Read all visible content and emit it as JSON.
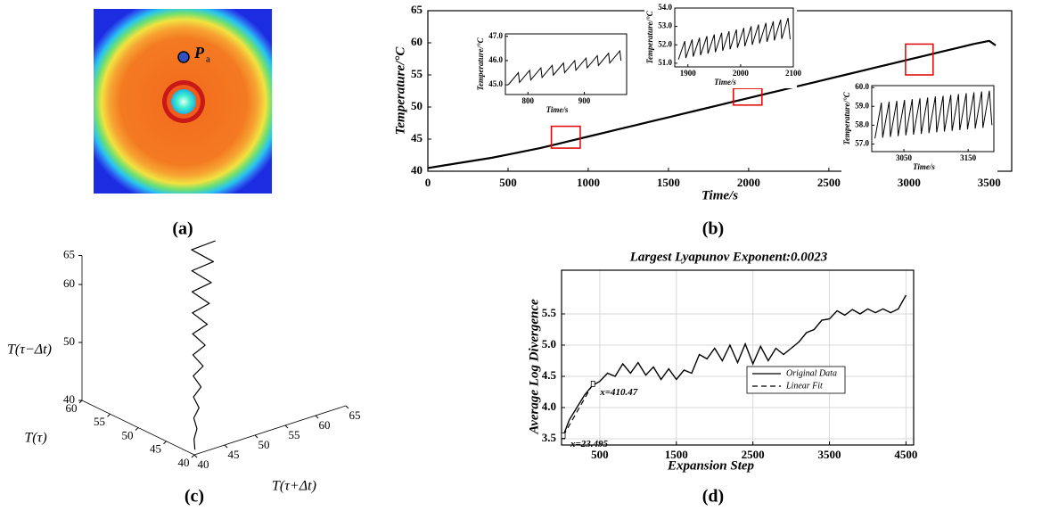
{
  "chart_data": [
    {
      "type": "image",
      "panel_label": "(a)",
      "marker_label": {
        "symbol": "P",
        "subscript": "a"
      }
    },
    {
      "type": "line",
      "panel_label": "(b)",
      "x_label": "Time/s",
      "y_label": "Temperature/°C",
      "color": "#000000",
      "xlim": [
        0,
        3640
      ],
      "ylim": [
        40,
        65
      ],
      "xticks": [
        0,
        500,
        1000,
        1500,
        2000,
        2500,
        3000,
        3500
      ],
      "yticks": [
        40,
        45,
        50,
        55,
        60,
        65
      ],
      "x": [
        0,
        100,
        200,
        300,
        400,
        500,
        600,
        700,
        800,
        900,
        1000,
        1100,
        1200,
        1300,
        1400,
        1500,
        1600,
        1700,
        1800,
        1900,
        2000,
        2100,
        2200,
        2300,
        2400,
        2500,
        2600,
        2700,
        2800,
        2900,
        3000,
        3100,
        3200,
        3300,
        3400,
        3500,
        3540
      ],
      "values": [
        40.5,
        40.9,
        41.3,
        41.7,
        42.1,
        42.6,
        43.1,
        43.6,
        44.2,
        44.8,
        45.4,
        46.0,
        46.6,
        47.2,
        47.8,
        48.4,
        49.0,
        49.6,
        50.2,
        50.8,
        51.4,
        52.0,
        52.6,
        53.2,
        53.8,
        54.4,
        55.0,
        55.6,
        56.2,
        56.8,
        57.4,
        58.0,
        58.6,
        59.2,
        59.8,
        60.3,
        59.6
      ],
      "regions": [
        {
          "xlim": [
            770,
            950
          ],
          "ylim": [
            43.6,
            47.0
          ]
        },
        {
          "xlim": [
            1905,
            2083
          ],
          "ylim": [
            50.3,
            52.9
          ]
        },
        {
          "xlim": [
            2978,
            3150
          ],
          "ylim": [
            55.0,
            59.8
          ]
        }
      ],
      "insets": [
        {
          "x_label": "Time/s",
          "y_label": "Temperature/°C",
          "xlim": [
            760,
            975
          ],
          "ylim": [
            44.6,
            47.1
          ],
          "xticks": [
            800,
            900
          ],
          "yticks": [
            {
              "value": 45,
              "label": "45.0"
            },
            {
              "value": 46,
              "label": "46.0"
            },
            {
              "value": 47,
              "label": "47.0"
            }
          ],
          "x": [
            765,
            783,
            785,
            803,
            805,
            823,
            825,
            843,
            845,
            863,
            865,
            883,
            885,
            903,
            905,
            923,
            925,
            943,
            945,
            963,
            965
          ],
          "values": [
            45.0,
            45.5,
            45.1,
            45.6,
            45.2,
            45.7,
            45.3,
            45.8,
            45.4,
            45.9,
            45.5,
            46.0,
            45.6,
            46.1,
            45.7,
            46.2,
            45.8,
            46.3,
            45.9,
            46.4,
            46.0
          ]
        },
        {
          "x_label": "Time/s",
          "y_label": "Temperature/°C",
          "xlim": [
            1875,
            2100
          ],
          "ylim": [
            50.8,
            54.0
          ],
          "xticks": [
            1900,
            2000,
            2100
          ],
          "yticks": [
            {
              "value": 51,
              "label": "51.0"
            },
            {
              "value": 52,
              "label": "52.0"
            },
            {
              "value": 53,
              "label": "53.0"
            },
            {
              "value": 54,
              "label": "54.0"
            }
          ],
          "x": [
            1882,
            1894,
            1896,
            1908,
            1910,
            1922,
            1924,
            1936,
            1938,
            1950,
            1952,
            1964,
            1966,
            1978,
            1980,
            1992,
            1994,
            2006,
            2008,
            2020,
            2022,
            2034,
            2036,
            2048,
            2050,
            2062,
            2064,
            2076,
            2078,
            2090,
            2094
          ],
          "values": [
            51.2,
            52.2,
            51.28,
            52.29,
            51.36,
            52.38,
            51.44,
            52.47,
            51.52,
            52.56,
            51.6,
            52.65,
            51.68,
            52.74,
            51.76,
            52.83,
            51.84,
            52.92,
            51.92,
            53.01,
            52.0,
            53.1,
            52.08,
            53.19,
            52.16,
            53.28,
            52.24,
            53.37,
            52.32,
            53.46,
            52.3
          ]
        },
        {
          "x_label": "Time/s",
          "y_label": "Temperature/°C",
          "xlim": [
            3000,
            3190
          ],
          "ylim": [
            56.6,
            60.1
          ],
          "xticks": [
            3050,
            3150
          ],
          "yticks": [
            {
              "value": 57,
              "label": "57.0"
            },
            {
              "value": 58,
              "label": "58.0"
            },
            {
              "value": 59,
              "label": "59.0"
            },
            {
              "value": 60,
              "label": "60.0"
            }
          ],
          "x": [
            3005,
            3015,
            3017,
            3027,
            3029,
            3039,
            3041,
            3051,
            3053,
            3063,
            3065,
            3075,
            3077,
            3087,
            3089,
            3099,
            3101,
            3111,
            3113,
            3123,
            3125,
            3135,
            3137,
            3147,
            3149,
            3159,
            3161,
            3171,
            3173,
            3183,
            3187
          ],
          "values": [
            57.3,
            59.2,
            57.34,
            59.25,
            57.38,
            59.29,
            57.42,
            59.34,
            57.46,
            59.38,
            57.5,
            59.43,
            57.54,
            59.47,
            57.58,
            59.52,
            57.62,
            59.56,
            57.66,
            59.61,
            57.7,
            59.65,
            57.74,
            59.7,
            57.78,
            59.74,
            57.82,
            59.79,
            57.86,
            59.83,
            58.0
          ]
        }
      ]
    },
    {
      "type": "line3d",
      "panel_label": "(c)",
      "x_label": "T(τ+Δt)",
      "y_label": "T(τ)",
      "z_label": "T(τ−Δt)",
      "color": "#000000",
      "xlim": [
        40,
        65
      ],
      "ylim": [
        40,
        60
      ],
      "zlim": [
        40,
        65
      ],
      "xticks": [
        40,
        45,
        50,
        55,
        60,
        65
      ],
      "yticks": [
        40,
        45,
        50,
        55,
        60
      ],
      "zticks": [
        40,
        50,
        60,
        65
      ],
      "x": [
        40.53,
        41.42,
        42.63,
        43.32,
        44.73,
        45.22,
        46.83,
        47.12,
        48.93,
        49.02,
        51.03,
        50.92,
        53.13,
        52.82,
        55.23,
        54.72,
        57.33,
        56.62,
        59.43,
        58.52,
        61.53
      ],
      "y": [
        40.47,
        41.58,
        42.37,
        43.68,
        44.27,
        45.78,
        46.17,
        47.88,
        48.07,
        49.98,
        49.97,
        52.08,
        51.87,
        54.18,
        53.77,
        56.28,
        55.67,
        58.38,
        57.57,
        60.48,
        59.47
      ],
      "z": [
        40.5,
        41.5,
        42.5,
        43.5,
        44.5,
        45.5,
        46.5,
        47.5,
        48.5,
        49.5,
        50.5,
        51.5,
        52.5,
        53.5,
        54.5,
        55.5,
        56.5,
        57.5,
        58.5,
        59.5,
        60.5
      ]
    },
    {
      "type": "line",
      "panel_label": "(d)",
      "title": "Largest Lyapunov Exponent:0.0023",
      "x_label": "Expansion Step",
      "y_label": "Average Log Divergence",
      "xlim": [
        0,
        4600
      ],
      "ylim": [
        3.4,
        6.2
      ],
      "xticks": [
        500,
        1500,
        2500,
        3500,
        4500
      ],
      "yticks": [
        3.5,
        {
          "value": 4,
          "label": "4.0"
        },
        4.5,
        {
          "value": 5,
          "label": "5.0"
        },
        5.5
      ],
      "grid": true,
      "legend": "center right",
      "series": [
        {
          "name": "Original Data",
          "color": "#000000",
          "dash": false,
          "x": [
            23.495,
            100,
            200,
            300,
            400,
            500,
            600,
            700,
            800,
            900,
            1000,
            1100,
            1200,
            1300,
            1400,
            1500,
            1600,
            1700,
            1800,
            1900,
            2000,
            2100,
            2200,
            2300,
            2400,
            2500,
            2600,
            2700,
            2800,
            2900,
            3000,
            3100,
            3200,
            3300,
            3400,
            3500,
            3600,
            3700,
            3800,
            3900,
            4000,
            4100,
            4200,
            4300,
            4400,
            4500
          ],
          "values": [
            3.55,
            3.8,
            4.0,
            4.2,
            4.35,
            4.42,
            4.55,
            4.5,
            4.7,
            4.55,
            4.72,
            4.52,
            4.65,
            4.45,
            4.62,
            4.45,
            4.6,
            4.55,
            4.85,
            4.78,
            4.95,
            4.75,
            5.0,
            4.72,
            5.02,
            4.7,
            4.98,
            4.75,
            4.95,
            4.85,
            4.95,
            5.05,
            5.2,
            5.25,
            5.4,
            5.42,
            5.55,
            5.48,
            5.57,
            5.5,
            5.58,
            5.52,
            5.58,
            5.52,
            5.58,
            5.8
          ]
        },
        {
          "name": "Linear Fit",
          "color": "#000000",
          "dash": true,
          "x": [
            23.495,
            410.47
          ],
          "values": [
            3.55,
            4.38
          ]
        }
      ],
      "annotations": [
        {
          "text": "x=410.47",
          "x": 410.47,
          "y": 4.38
        },
        {
          "text": "x=23.495",
          "x": 23.495,
          "y": 3.55
        }
      ]
    }
  ]
}
